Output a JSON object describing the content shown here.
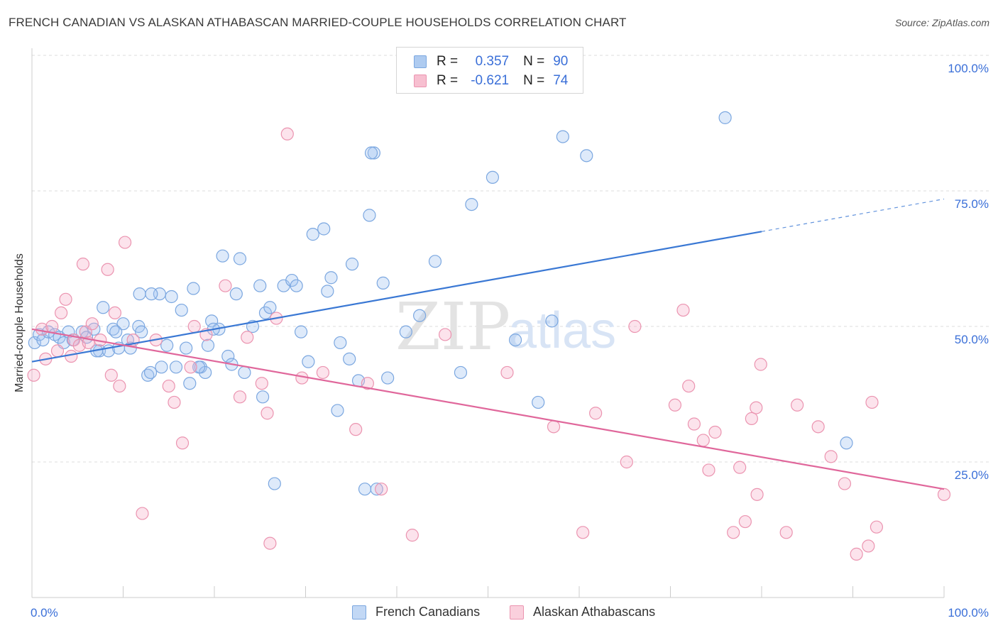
{
  "title": "FRENCH CANADIAN VS ALASKAN ATHABASCAN MARRIED-COUPLE HOUSEHOLDS CORRELATION CHART",
  "source": "Source: ZipAtlas.com",
  "watermark": {
    "zip": "ZIP",
    "atlas": "atlas"
  },
  "legend": {
    "r_label": "R =",
    "n_label": "N =",
    "rows": [
      {
        "r": "0.357",
        "n": "90",
        "color": "#aecbf0",
        "border": "#7ba7e0"
      },
      {
        "r": "-0.621",
        "n": "74",
        "color": "#f7bfd0",
        "border": "#eb94b0"
      }
    ]
  },
  "bottom_legend": [
    {
      "label": "French Canadians",
      "color": "#c2d8f5",
      "border": "#7ba7e0"
    },
    {
      "label": "Alaskan Athabascans",
      "color": "#fad0dd",
      "border": "#eb94b0"
    }
  ],
  "colors": {
    "blue": "#3a78d4",
    "pink": "#e0679b",
    "blue_fill": "rgba(160,195,240,0.35)",
    "pink_fill": "rgba(246,176,200,0.35)",
    "axis_text": "#3a6fd8"
  },
  "chart_data": {
    "type": "scatter",
    "title": "FRENCH CANADIAN VS ALASKAN ATHABASCAN MARRIED-COUPLE HOUSEHOLDS CORRELATION CHART",
    "xlabel": "",
    "ylabel": "Married-couple Households",
    "xlim": [
      0,
      100
    ],
    "ylim": [
      0,
      100
    ],
    "x_tick_labels": [
      {
        "value": 0,
        "label": "0.0%"
      },
      {
        "value": 100,
        "label": "100.0%"
      }
    ],
    "y_tick_labels": [
      {
        "value": 25,
        "label": "25.0%"
      },
      {
        "value": 50,
        "label": "50.0%"
      },
      {
        "value": 75,
        "label": "75.0%"
      },
      {
        "value": 100,
        "label": "100.0%"
      }
    ],
    "grid": "horizontal dashed",
    "series": [
      {
        "name": "French Canadians",
        "trend": {
          "x0": 0,
          "y0": 43.5,
          "x1": 80,
          "y1": 67.5,
          "dashed_to_x": 100,
          "dashed_to_y": 73.5
        },
        "points": [
          [
            0.3,
            47
          ],
          [
            0.8,
            48.5
          ],
          [
            1.2,
            47.5
          ],
          [
            1.8,
            49
          ],
          [
            2.5,
            48.5
          ],
          [
            3,
            48
          ],
          [
            3.5,
            47
          ],
          [
            4,
            49
          ],
          [
            4.5,
            47.5
          ],
          [
            5.5,
            49
          ],
          [
            6,
            48
          ],
          [
            6.8,
            49.5
          ],
          [
            7.4,
            45.5
          ],
          [
            7.8,
            53.5
          ],
          [
            8.4,
            45.5
          ],
          [
            8.9,
            49.5
          ],
          [
            9.5,
            46
          ],
          [
            10,
            50.5
          ],
          [
            10.5,
            47.5
          ],
          [
            10.8,
            46
          ],
          [
            11.7,
            50
          ],
          [
            12,
            49
          ],
          [
            12.7,
            41
          ],
          [
            13,
            41.5
          ],
          [
            11.8,
            56
          ],
          [
            14,
            56
          ],
          [
            14.2,
            42.5
          ],
          [
            14.8,
            46.5
          ],
          [
            15.3,
            55.5
          ],
          [
            15.8,
            42.5
          ],
          [
            16.4,
            53
          ],
          [
            16.9,
            46
          ],
          [
            17.3,
            39.5
          ],
          [
            17.7,
            57
          ],
          [
            18.5,
            42.5
          ],
          [
            19,
            41.5
          ],
          [
            19.3,
            46.5
          ],
          [
            19.7,
            51
          ],
          [
            20.5,
            49.5
          ],
          [
            20.9,
            63
          ],
          [
            21.5,
            44.5
          ],
          [
            21.9,
            43
          ],
          [
            22.4,
            56
          ],
          [
            22.8,
            62.5
          ],
          [
            23.3,
            41.5
          ],
          [
            24.2,
            50
          ],
          [
            25,
            57.5
          ],
          [
            25.3,
            37
          ],
          [
            25.6,
            52.5
          ],
          [
            26.1,
            53.5
          ],
          [
            26.6,
            21
          ],
          [
            27.6,
            57.5
          ],
          [
            28.5,
            58.5
          ],
          [
            29,
            57.5
          ],
          [
            29.5,
            49
          ],
          [
            30.3,
            43.5
          ],
          [
            30.8,
            67
          ],
          [
            32,
            68
          ],
          [
            32.4,
            56.5
          ],
          [
            32.8,
            59
          ],
          [
            33.5,
            34.5
          ],
          [
            33.8,
            47
          ],
          [
            34.8,
            44
          ],
          [
            35.1,
            61.5
          ],
          [
            35.8,
            40
          ],
          [
            36.5,
            20
          ],
          [
            37,
            70.5
          ],
          [
            37.5,
            82
          ],
          [
            37.8,
            20
          ],
          [
            38.5,
            58
          ],
          [
            39,
            40.5
          ],
          [
            41,
            49
          ],
          [
            42.5,
            52
          ],
          [
            44.2,
            62
          ],
          [
            47,
            41.5
          ],
          [
            48.2,
            72.5
          ],
          [
            50.5,
            77.5
          ],
          [
            53,
            47.5
          ],
          [
            55.5,
            36
          ],
          [
            57,
            51
          ],
          [
            58.2,
            85
          ],
          [
            60.8,
            81.5
          ],
          [
            76,
            88.5
          ],
          [
            89.3,
            28.5
          ],
          [
            37.2,
            82
          ],
          [
            19.9,
            49.5
          ],
          [
            18.3,
            42.5
          ],
          [
            13.1,
            56
          ],
          [
            9.2,
            49
          ],
          [
            7.1,
            45.5
          ]
        ]
      },
      {
        "name": "Alaskan Athabascans",
        "trend": {
          "x0": 0,
          "y0": 49.5,
          "x1": 100,
          "y1": 20
        },
        "points": [
          [
            0.2,
            41
          ],
          [
            1.1,
            49.5
          ],
          [
            1.5,
            44
          ],
          [
            2.2,
            50
          ],
          [
            2.8,
            45.5
          ],
          [
            3.2,
            52.5
          ],
          [
            3.7,
            55
          ],
          [
            4.3,
            44.5
          ],
          [
            4.6,
            47.5
          ],
          [
            5.2,
            46.5
          ],
          [
            5.6,
            61.5
          ],
          [
            5.9,
            49
          ],
          [
            6.6,
            50.5
          ],
          [
            6.2,
            47
          ],
          [
            7.5,
            47.5
          ],
          [
            8.3,
            60.5
          ],
          [
            8.7,
            41
          ],
          [
            9.1,
            52.5
          ],
          [
            9.6,
            39
          ],
          [
            10.2,
            65.5
          ],
          [
            11.1,
            47.5
          ],
          [
            12.1,
            15.5
          ],
          [
            13.6,
            47.5
          ],
          [
            15,
            39
          ],
          [
            15.6,
            36
          ],
          [
            16.5,
            28.5
          ],
          [
            17.4,
            42.5
          ],
          [
            17.8,
            50
          ],
          [
            19.1,
            48.5
          ],
          [
            21.2,
            57.5
          ],
          [
            22.8,
            37
          ],
          [
            23.6,
            48
          ],
          [
            25.2,
            39.5
          ],
          [
            25.8,
            34
          ],
          [
            26.1,
            10
          ],
          [
            26.8,
            51.5
          ],
          [
            28,
            85.5
          ],
          [
            29.6,
            40.5
          ],
          [
            31.9,
            41.5
          ],
          [
            35.5,
            31
          ],
          [
            36.8,
            39.5
          ],
          [
            38.3,
            20
          ],
          [
            41.7,
            11.5
          ],
          [
            45.3,
            48.5
          ],
          [
            52.1,
            41.5
          ],
          [
            57.2,
            31.5
          ],
          [
            60.4,
            12
          ],
          [
            61.8,
            34
          ],
          [
            65.2,
            25
          ],
          [
            66.1,
            50
          ],
          [
            70.5,
            35.5
          ],
          [
            71.4,
            53
          ],
          [
            72,
            39
          ],
          [
            72.6,
            32
          ],
          [
            73.6,
            29
          ],
          [
            74.2,
            23.5
          ],
          [
            74.9,
            30.5
          ],
          [
            76.9,
            12
          ],
          [
            77.6,
            24
          ],
          [
            78.2,
            14
          ],
          [
            78.9,
            33
          ],
          [
            79.4,
            35
          ],
          [
            79.9,
            43
          ],
          [
            79.5,
            19
          ],
          [
            82.7,
            12
          ],
          [
            83.9,
            35.5
          ],
          [
            86.2,
            31.5
          ],
          [
            87.6,
            26
          ],
          [
            89.1,
            21
          ],
          [
            91.7,
            9.5
          ],
          [
            90.4,
            8
          ],
          [
            92.1,
            36
          ],
          [
            92.6,
            13
          ],
          [
            100,
            19
          ]
        ]
      }
    ]
  }
}
